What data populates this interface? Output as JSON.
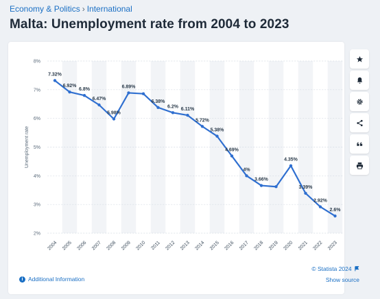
{
  "breadcrumb": {
    "part1": "Economy & Politics",
    "separator": "›",
    "part2": "International"
  },
  "title": "Malta: Unemployment rate from 2004 to 2023",
  "toolbar": {
    "icons": [
      "star-icon",
      "bell-icon",
      "gear-icon",
      "share-icon",
      "quote-icon",
      "print-icon"
    ]
  },
  "footer": {
    "credit": "© Statista 2024",
    "show_source": "Show source",
    "additional_info": "Additional Information"
  },
  "colors": {
    "line": "#2f6fd0",
    "band": "#f2f4f7",
    "text": "#1e2a38",
    "link": "#1a6fc4"
  },
  "chart_data": {
    "type": "line",
    "title": "Malta: Unemployment rate from 2004 to 2023",
    "ylabel": "Unemployment rate",
    "xlabel": "",
    "categories": [
      "2004",
      "2005",
      "2006",
      "2007",
      "2008",
      "2009",
      "2010",
      "2011",
      "2012",
      "2013",
      "2014",
      "2015",
      "2016",
      "2017",
      "2018",
      "2019",
      "2020",
      "2021",
      "2022",
      "2023"
    ],
    "series": [
      {
        "values": [
          7.32,
          6.92,
          6.8,
          6.47,
          5.98,
          6.89,
          6.86,
          6.38,
          6.2,
          6.11,
          5.72,
          5.38,
          4.69,
          4.0,
          3.66,
          3.62,
          4.35,
          3.39,
          2.92,
          2.6
        ]
      }
    ],
    "data_labels": [
      "7.32%",
      "6.92%",
      "6.8%",
      "6.47%",
      "5.98%",
      "6.89%",
      "",
      "6.38%",
      "6.2%",
      "6.11%",
      "5.72%",
      "5.38%",
      "4.69%",
      "4%",
      "3.66%",
      "",
      "4.35%",
      "3.39%",
      "2.92%",
      "2.6%"
    ],
    "yticks": [
      "2%",
      "3%",
      "4%",
      "5%",
      "6%",
      "7%",
      "8%"
    ],
    "ylim": [
      2,
      8
    ],
    "grid": true,
    "legend": "none"
  }
}
